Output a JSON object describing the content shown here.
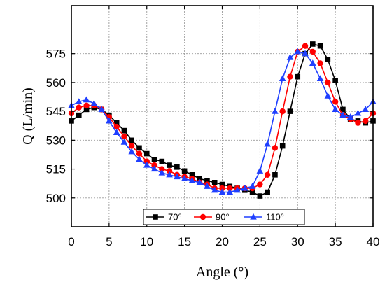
{
  "chart_data": {
    "type": "line",
    "title": "",
    "xlabel": "Angle (°)",
    "ylabel": "Q (L/min)",
    "xlim": [
      0,
      40
    ],
    "ylim": [
      485,
      600
    ],
    "xticks": [
      0,
      5,
      10,
      15,
      20,
      25,
      30,
      35,
      40
    ],
    "yticks": [
      500,
      515,
      530,
      545,
      560,
      575
    ],
    "grid": true,
    "legend_position": "bottom-center",
    "series": [
      {
        "name": "70°",
        "color": "#000000",
        "marker": "square",
        "x": [
          0,
          1,
          2,
          3,
          4,
          5,
          6,
          7,
          8,
          9,
          10,
          11,
          12,
          13,
          14,
          15,
          16,
          17,
          18,
          19,
          20,
          21,
          22,
          23,
          24,
          25,
          26,
          27,
          28,
          29,
          30,
          31,
          32,
          33,
          34,
          35,
          36,
          37,
          38,
          39,
          40
        ],
        "y": [
          540,
          543,
          546,
          547,
          546,
          543,
          539,
          535,
          530,
          526,
          523,
          520,
          519,
          517,
          516,
          514,
          512,
          510,
          509,
          508,
          507,
          506,
          505,
          504,
          503,
          501,
          503,
          512,
          527,
          545,
          563,
          575,
          580,
          579,
          572,
          561,
          546,
          541,
          540,
          539,
          540
        ]
      },
      {
        "name": "90°",
        "color": "#ff0000",
        "marker": "circle",
        "x": [
          0,
          1,
          2,
          3,
          4,
          5,
          6,
          7,
          8,
          9,
          10,
          11,
          12,
          13,
          14,
          15,
          16,
          17,
          18,
          19,
          20,
          21,
          22,
          23,
          24,
          25,
          26,
          27,
          28,
          29,
          30,
          31,
          32,
          33,
          34,
          35,
          36,
          37,
          38,
          39,
          40
        ],
        "y": [
          544,
          547,
          548,
          548,
          546,
          542,
          537,
          532,
          527,
          523,
          519,
          517,
          515,
          514,
          512,
          511,
          510,
          508,
          507,
          505,
          505,
          505,
          505,
          505,
          505,
          507,
          512,
          526,
          545,
          563,
          576,
          579,
          576,
          570,
          560,
          550,
          543,
          541,
          539,
          540,
          544
        ]
      },
      {
        "name": "110°",
        "color": "#1f3fff",
        "marker": "triangle",
        "x": [
          0,
          1,
          2,
          3,
          4,
          5,
          6,
          7,
          8,
          9,
          10,
          11,
          12,
          13,
          14,
          15,
          16,
          17,
          18,
          19,
          20,
          21,
          22,
          23,
          24,
          25,
          26,
          27,
          28,
          29,
          30,
          31,
          32,
          33,
          34,
          35,
          36,
          37,
          38,
          39,
          40
        ],
        "y": [
          548,
          550,
          551,
          549,
          546,
          540,
          534,
          529,
          524,
          520,
          517,
          515,
          513,
          512,
          511,
          510,
          509,
          508,
          506,
          504,
          503,
          503,
          504,
          505,
          506,
          514,
          528,
          545,
          562,
          573,
          576,
          575,
          570,
          562,
          553,
          546,
          543,
          542,
          544,
          546,
          550
        ]
      }
    ]
  }
}
